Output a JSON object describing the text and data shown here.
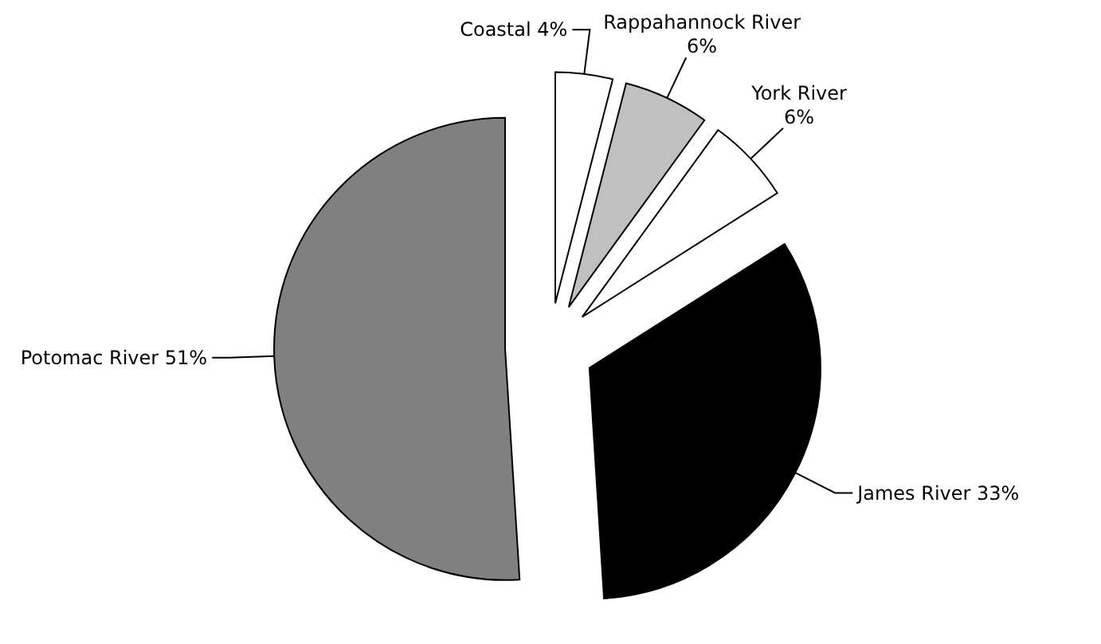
{
  "chart_data": {
    "type": "pie",
    "categories": [
      "Coastal",
      "Rappahannock River",
      "York River",
      "James River",
      "Potomac River"
    ],
    "values": [
      4,
      6,
      6,
      33,
      51
    ],
    "value_labels": [
      "4%",
      "6%",
      "6%",
      "33%",
      "51%"
    ],
    "colors": [
      "#ffffff",
      "#c0c0c0",
      "#ffffff",
      "#000000",
      "#808080"
    ]
  }
}
